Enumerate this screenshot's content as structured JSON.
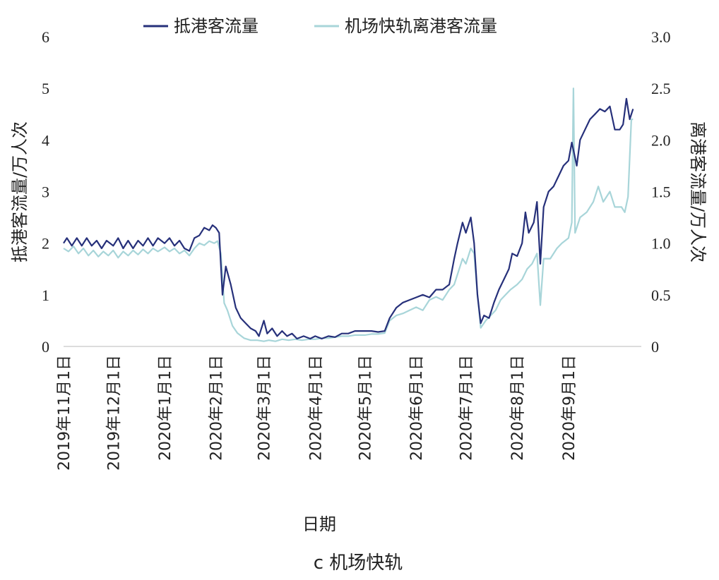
{
  "chart_data": {
    "type": "line",
    "caption": "c 机场快轨",
    "xlabel": "日期",
    "ylabel_left": "抵港客流量/万人次",
    "ylabel_right": "离港客流量/万人次",
    "ylim_left": [
      0,
      6
    ],
    "ylim_right": [
      0,
      3.0
    ],
    "yticks_left": [
      "0",
      "1",
      "2",
      "3",
      "4",
      "5",
      "6"
    ],
    "yticks_right": [
      "0",
      "0.5",
      "1.0",
      "1.5",
      "2.0",
      "2.5",
      "3.0"
    ],
    "legend_position": "top",
    "x_tick_labels": [
      "2019年11月1日",
      "2019年12月1日",
      "2020年1月1日",
      "2020年2月1日",
      "2020年3月1日",
      "2020年4月1日",
      "2020年5月1日",
      "2020年6月1日",
      "2020年7月1日",
      "2020年8月1日",
      "2020年9月1日"
    ],
    "x_tick_dates": [
      "2019-11-01",
      "2019-12-01",
      "2020-01-01",
      "2020-02-01",
      "2020-03-01",
      "2020-04-01",
      "2020-05-01",
      "2020-06-01",
      "2020-07-01",
      "2020-08-01",
      "2020-09-01"
    ],
    "x_range": [
      "2019-11-01",
      "2020-10-15"
    ],
    "series": [
      {
        "name": "抵港客流量",
        "axis": "left",
        "color": "#26307a",
        "points": [
          [
            "2019-11-01",
            2.0
          ],
          [
            "2019-11-03",
            2.1
          ],
          [
            "2019-11-06",
            1.95
          ],
          [
            "2019-11-09",
            2.1
          ],
          [
            "2019-11-12",
            1.95
          ],
          [
            "2019-11-15",
            2.1
          ],
          [
            "2019-11-18",
            1.95
          ],
          [
            "2019-11-21",
            2.05
          ],
          [
            "2019-11-24",
            1.9
          ],
          [
            "2019-11-27",
            2.05
          ],
          [
            "2019-12-01",
            1.95
          ],
          [
            "2019-12-04",
            2.1
          ],
          [
            "2019-12-07",
            1.9
          ],
          [
            "2019-12-10",
            2.05
          ],
          [
            "2019-12-13",
            1.9
          ],
          [
            "2019-12-16",
            2.05
          ],
          [
            "2019-12-19",
            1.95
          ],
          [
            "2019-12-22",
            2.1
          ],
          [
            "2019-12-25",
            1.95
          ],
          [
            "2019-12-28",
            2.1
          ],
          [
            "2020-01-01",
            2.0
          ],
          [
            "2020-01-04",
            2.1
          ],
          [
            "2020-01-07",
            1.95
          ],
          [
            "2020-01-10",
            2.05
          ],
          [
            "2020-01-13",
            1.9
          ],
          [
            "2020-01-16",
            1.85
          ],
          [
            "2020-01-19",
            2.1
          ],
          [
            "2020-01-22",
            2.15
          ],
          [
            "2020-01-25",
            2.3
          ],
          [
            "2020-01-28",
            2.25
          ],
          [
            "2020-01-30",
            2.35
          ],
          [
            "2020-02-01",
            2.3
          ],
          [
            "2020-02-03",
            2.2
          ],
          [
            "2020-02-05",
            1.0
          ],
          [
            "2020-02-07",
            1.55
          ],
          [
            "2020-02-10",
            1.2
          ],
          [
            "2020-02-13",
            0.75
          ],
          [
            "2020-02-16",
            0.55
          ],
          [
            "2020-02-19",
            0.45
          ],
          [
            "2020-02-22",
            0.35
          ],
          [
            "2020-02-25",
            0.3
          ],
          [
            "2020-02-27",
            0.2
          ],
          [
            "2020-03-01",
            0.5
          ],
          [
            "2020-03-03",
            0.25
          ],
          [
            "2020-03-06",
            0.35
          ],
          [
            "2020-03-09",
            0.2
          ],
          [
            "2020-03-12",
            0.3
          ],
          [
            "2020-03-15",
            0.2
          ],
          [
            "2020-03-18",
            0.25
          ],
          [
            "2020-03-21",
            0.15
          ],
          [
            "2020-03-25",
            0.2
          ],
          [
            "2020-03-29",
            0.15
          ],
          [
            "2020-04-01",
            0.2
          ],
          [
            "2020-04-05",
            0.15
          ],
          [
            "2020-04-09",
            0.2
          ],
          [
            "2020-04-13",
            0.18
          ],
          [
            "2020-04-17",
            0.25
          ],
          [
            "2020-04-21",
            0.25
          ],
          [
            "2020-04-25",
            0.3
          ],
          [
            "2020-05-01",
            0.3
          ],
          [
            "2020-05-05",
            0.3
          ],
          [
            "2020-05-09",
            0.28
          ],
          [
            "2020-05-13",
            0.3
          ],
          [
            "2020-05-16",
            0.55
          ],
          [
            "2020-05-20",
            0.75
          ],
          [
            "2020-05-24",
            0.85
          ],
          [
            "2020-05-28",
            0.9
          ],
          [
            "2020-06-01",
            0.95
          ],
          [
            "2020-06-05",
            1.0
          ],
          [
            "2020-06-09",
            0.95
          ],
          [
            "2020-06-13",
            1.1
          ],
          [
            "2020-06-17",
            1.1
          ],
          [
            "2020-06-21",
            1.2
          ],
          [
            "2020-06-24",
            1.7
          ],
          [
            "2020-06-26",
            2.0
          ],
          [
            "2020-06-29",
            2.4
          ],
          [
            "2020-07-01",
            2.2
          ],
          [
            "2020-07-04",
            2.5
          ],
          [
            "2020-07-06",
            2.0
          ],
          [
            "2020-07-08",
            1.0
          ],
          [
            "2020-07-10",
            0.45
          ],
          [
            "2020-07-12",
            0.6
          ],
          [
            "2020-07-15",
            0.55
          ],
          [
            "2020-07-18",
            0.85
          ],
          [
            "2020-07-21",
            1.1
          ],
          [
            "2020-07-24",
            1.3
          ],
          [
            "2020-07-27",
            1.5
          ],
          [
            "2020-07-29",
            1.8
          ],
          [
            "2020-08-01",
            1.75
          ],
          [
            "2020-08-04",
            2.0
          ],
          [
            "2020-08-06",
            2.6
          ],
          [
            "2020-08-08",
            2.2
          ],
          [
            "2020-08-11",
            2.4
          ],
          [
            "2020-08-13",
            2.8
          ],
          [
            "2020-08-15",
            1.6
          ],
          [
            "2020-08-17",
            2.7
          ],
          [
            "2020-08-20",
            3.0
          ],
          [
            "2020-08-23",
            3.1
          ],
          [
            "2020-08-26",
            3.3
          ],
          [
            "2020-08-29",
            3.5
          ],
          [
            "2020-09-01",
            3.6
          ],
          [
            "2020-09-03",
            3.95
          ],
          [
            "2020-09-06",
            3.5
          ],
          [
            "2020-09-08",
            4.0
          ],
          [
            "2020-09-11",
            4.2
          ],
          [
            "2020-09-14",
            4.4
          ],
          [
            "2020-09-17",
            4.5
          ],
          [
            "2020-09-20",
            4.6
          ],
          [
            "2020-09-23",
            4.55
          ],
          [
            "2020-09-26",
            4.65
          ],
          [
            "2020-09-29",
            4.2
          ],
          [
            "2020-10-02",
            4.2
          ],
          [
            "2020-10-04",
            4.3
          ],
          [
            "2020-10-06",
            4.8
          ],
          [
            "2020-10-08",
            4.4
          ],
          [
            "2020-10-10",
            4.6
          ]
        ]
      },
      {
        "name": "机场快轨离港客流量",
        "axis": "right",
        "color": "#a8d5d9",
        "points": [
          [
            "2019-11-01",
            0.95
          ],
          [
            "2019-11-04",
            0.92
          ],
          [
            "2019-11-07",
            0.97
          ],
          [
            "2019-11-10",
            0.9
          ],
          [
            "2019-11-13",
            0.95
          ],
          [
            "2019-11-16",
            0.88
          ],
          [
            "2019-11-19",
            0.93
          ],
          [
            "2019-11-22",
            0.87
          ],
          [
            "2019-11-25",
            0.92
          ],
          [
            "2019-11-28",
            0.88
          ],
          [
            "2019-12-01",
            0.93
          ],
          [
            "2019-12-04",
            0.86
          ],
          [
            "2019-12-07",
            0.92
          ],
          [
            "2019-12-10",
            0.88
          ],
          [
            "2019-12-13",
            0.93
          ],
          [
            "2019-12-16",
            0.89
          ],
          [
            "2019-12-19",
            0.94
          ],
          [
            "2019-12-22",
            0.9
          ],
          [
            "2019-12-25",
            0.95
          ],
          [
            "2019-12-28",
            0.92
          ],
          [
            "2020-01-01",
            0.96
          ],
          [
            "2020-01-04",
            0.92
          ],
          [
            "2020-01-07",
            0.95
          ],
          [
            "2020-01-10",
            0.9
          ],
          [
            "2020-01-13",
            0.93
          ],
          [
            "2020-01-16",
            0.88
          ],
          [
            "2020-01-19",
            0.95
          ],
          [
            "2020-01-22",
            1.0
          ],
          [
            "2020-01-25",
            0.98
          ],
          [
            "2020-01-28",
            1.02
          ],
          [
            "2020-01-31",
            1.0
          ],
          [
            "2020-02-02",
            1.02
          ],
          [
            "2020-02-04",
            0.9
          ],
          [
            "2020-02-06",
            0.42
          ],
          [
            "2020-02-08",
            0.35
          ],
          [
            "2020-02-11",
            0.2
          ],
          [
            "2020-02-14",
            0.13
          ],
          [
            "2020-02-18",
            0.08
          ],
          [
            "2020-02-22",
            0.06
          ],
          [
            "2020-02-26",
            0.06
          ],
          [
            "2020-03-01",
            0.05
          ],
          [
            "2020-03-04",
            0.06
          ],
          [
            "2020-03-08",
            0.05
          ],
          [
            "2020-03-12",
            0.07
          ],
          [
            "2020-03-16",
            0.06
          ],
          [
            "2020-03-20",
            0.07
          ],
          [
            "2020-03-24",
            0.06
          ],
          [
            "2020-03-28",
            0.07
          ],
          [
            "2020-04-01",
            0.07
          ],
          [
            "2020-04-05",
            0.08
          ],
          [
            "2020-04-09",
            0.08
          ],
          [
            "2020-04-13",
            0.09
          ],
          [
            "2020-04-17",
            0.1
          ],
          [
            "2020-04-21",
            0.1
          ],
          [
            "2020-04-25",
            0.11
          ],
          [
            "2020-05-01",
            0.11
          ],
          [
            "2020-05-05",
            0.12
          ],
          [
            "2020-05-09",
            0.12
          ],
          [
            "2020-05-13",
            0.13
          ],
          [
            "2020-05-16",
            0.25
          ],
          [
            "2020-05-20",
            0.3
          ],
          [
            "2020-05-24",
            0.32
          ],
          [
            "2020-05-28",
            0.35
          ],
          [
            "2020-06-01",
            0.38
          ],
          [
            "2020-06-05",
            0.35
          ],
          [
            "2020-06-09",
            0.45
          ],
          [
            "2020-06-13",
            0.48
          ],
          [
            "2020-06-17",
            0.45
          ],
          [
            "2020-06-21",
            0.55
          ],
          [
            "2020-06-24",
            0.6
          ],
          [
            "2020-06-27",
            0.75
          ],
          [
            "2020-06-29",
            0.85
          ],
          [
            "2020-07-01",
            0.8
          ],
          [
            "2020-07-04",
            0.95
          ],
          [
            "2020-07-06",
            0.9
          ],
          [
            "2020-07-08",
            0.5
          ],
          [
            "2020-07-10",
            0.18
          ],
          [
            "2020-07-13",
            0.25
          ],
          [
            "2020-07-16",
            0.3
          ],
          [
            "2020-07-19",
            0.35
          ],
          [
            "2020-07-22",
            0.45
          ],
          [
            "2020-07-25",
            0.5
          ],
          [
            "2020-07-28",
            0.55
          ],
          [
            "2020-08-01",
            0.6
          ],
          [
            "2020-08-04",
            0.65
          ],
          [
            "2020-08-07",
            0.75
          ],
          [
            "2020-08-10",
            0.8
          ],
          [
            "2020-08-13",
            0.9
          ],
          [
            "2020-08-15",
            0.4
          ],
          [
            "2020-08-17",
            0.85
          ],
          [
            "2020-08-21",
            0.85
          ],
          [
            "2020-08-25",
            0.95
          ],
          [
            "2020-08-28",
            1.0
          ],
          [
            "2020-09-01",
            1.05
          ],
          [
            "2020-09-03",
            1.2
          ],
          [
            "2020-09-04",
            2.5
          ],
          [
            "2020-09-05",
            1.1
          ],
          [
            "2020-09-08",
            1.25
          ],
          [
            "2020-09-12",
            1.3
          ],
          [
            "2020-09-16",
            1.4
          ],
          [
            "2020-09-19",
            1.55
          ],
          [
            "2020-09-22",
            1.4
          ],
          [
            "2020-09-26",
            1.5
          ],
          [
            "2020-09-29",
            1.35
          ],
          [
            "2020-10-03",
            1.35
          ],
          [
            "2020-10-05",
            1.3
          ],
          [
            "2020-10-07",
            1.45
          ],
          [
            "2020-10-09",
            2.2
          ],
          [
            "2020-10-10",
            2.2
          ]
        ]
      }
    ]
  }
}
